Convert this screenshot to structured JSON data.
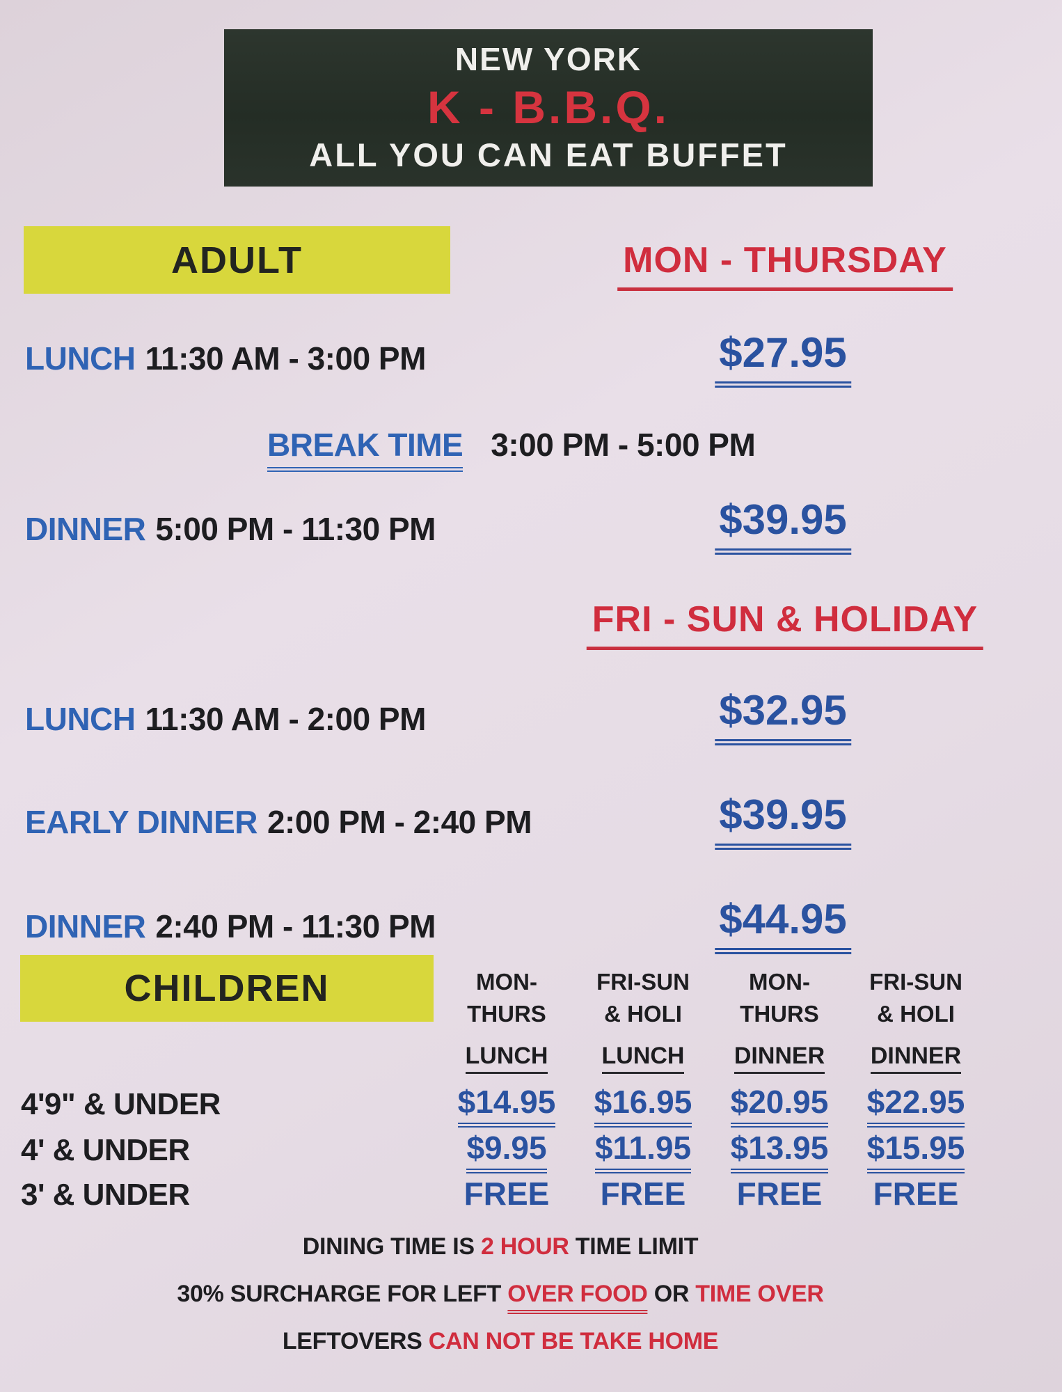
{
  "header": {
    "line1": "NEW YORK",
    "line2": "K - B.B.Q.",
    "line3": "ALL YOU CAN EAT BUFFET"
  },
  "adult": {
    "section_label": "ADULT",
    "weekday": {
      "title": "MON - THURSDAY",
      "rows": [
        {
          "label": "LUNCH",
          "time": "11:30 AM - 3:00 PM",
          "price": "$27.95"
        },
        {
          "label": "BREAK TIME",
          "time": "3:00 PM - 5:00 PM"
        },
        {
          "label": "DINNER",
          "time": "5:00 PM - 11:30 PM",
          "price": "$39.95"
        }
      ]
    },
    "weekend": {
      "title": "FRI - SUN & HOLIDAY",
      "rows": [
        {
          "label": "LUNCH",
          "time": "11:30 AM - 2:00 PM",
          "price": "$32.95"
        },
        {
          "label": "EARLY DINNER",
          "time": "2:00 PM - 2:40 PM",
          "price": "$39.95"
        },
        {
          "label": "DINNER",
          "time": "2:40 PM - 11:30 PM",
          "price": "$44.95"
        }
      ]
    }
  },
  "children": {
    "section_label": "CHILDREN",
    "columns": [
      {
        "line1": "MON-",
        "line2": "THURS",
        "line3": "LUNCH"
      },
      {
        "line1": "FRI-SUN",
        "line2": "& HOLI",
        "line3": "LUNCH"
      },
      {
        "line1": "MON-",
        "line2": "THURS",
        "line3": "DINNER"
      },
      {
        "line1": "FRI-SUN",
        "line2": "& HOLI",
        "line3": "DINNER"
      }
    ],
    "rows": [
      {
        "label": "4'9\" & UNDER",
        "prices": [
          "$14.95",
          "$16.95",
          "$20.95",
          "$22.95"
        ]
      },
      {
        "label": "4' & UNDER",
        "prices": [
          "$9.95",
          "$11.95",
          "$13.95",
          "$15.95"
        ]
      },
      {
        "label": "3' & UNDER",
        "prices": [
          "FREE",
          "FREE",
          "FREE",
          "FREE"
        ]
      }
    ]
  },
  "notes": [
    {
      "part1": "DINING TIME IS",
      "part2_red": "2 HOUR",
      "part3": "TIME LIMIT"
    },
    {
      "part1": "30% SURCHARGE FOR LEFT",
      "part2_red_underlined": "OVER FOOD",
      "part3": "OR",
      "part4_red": "TIME OVER"
    },
    {
      "part1": "LEFTOVERS",
      "part2_red": "CAN NOT BE TAKE HOME"
    }
  ],
  "colors": {
    "highlight_yellow": "#d8d73c",
    "accent_blue": "#2a52a0",
    "accent_red": "#d02d3e",
    "header_bg": "#262f27"
  }
}
